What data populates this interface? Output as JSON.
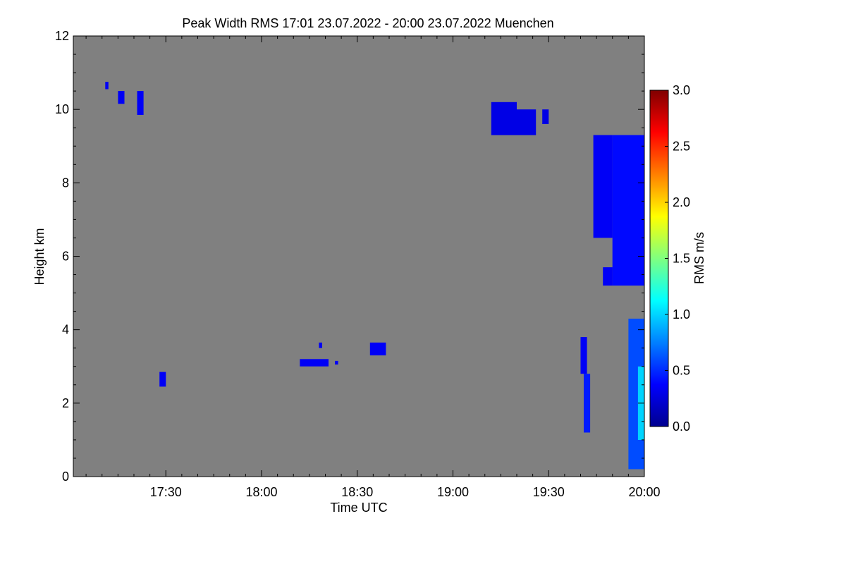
{
  "chart_data": {
    "type": "heatmap",
    "title": "Peak Width RMS   17:01 23.07.2022 - 20:00 23.07.2022 Muenchen",
    "xlabel": "Time UTC",
    "ylabel": "Height km",
    "x_ticks": [
      {
        "value": 1050,
        "label": "17:30"
      },
      {
        "value": 1080,
        "label": "18:00"
      },
      {
        "value": 1110,
        "label": "18:30"
      },
      {
        "value": 1140,
        "label": "19:00"
      },
      {
        "value": 1170,
        "label": "19:30"
      },
      {
        "value": 1200,
        "label": "20:00"
      }
    ],
    "xlim": [
      1021,
      1200
    ],
    "y_ticks": [
      0,
      2,
      4,
      6,
      8,
      10,
      12
    ],
    "ylim": [
      0,
      12
    ],
    "colorbar": {
      "label": "RMS m/s",
      "range": [
        0.0,
        3.0
      ],
      "ticks": [
        "0.0",
        "0.5",
        "1.0",
        "1.5",
        "2.0",
        "2.5",
        "3.0"
      ]
    },
    "background_color": "#808080",
    "echo_regions": [
      {
        "t": [
          1031,
          1032
        ],
        "h": [
          10.55,
          10.75
        ],
        "v": 0.35
      },
      {
        "t": [
          1035,
          1037
        ],
        "h": [
          10.15,
          10.5
        ],
        "v": 0.35
      },
      {
        "t": [
          1041,
          1043
        ],
        "h": [
          9.85,
          10.5
        ],
        "v": 0.35
      },
      {
        "t": [
          1048,
          1050
        ],
        "h": [
          2.45,
          2.85
        ],
        "v": 0.35
      },
      {
        "t": [
          1092,
          1101
        ],
        "h": [
          3.0,
          3.2
        ],
        "v": 0.35
      },
      {
        "t": [
          1103,
          1104
        ],
        "h": [
          3.05,
          3.15
        ],
        "v": 0.35
      },
      {
        "t": [
          1098,
          1099
        ],
        "h": [
          3.5,
          3.65
        ],
        "v": 0.35
      },
      {
        "t": [
          1114,
          1119
        ],
        "h": [
          3.3,
          3.65
        ],
        "v": 0.35
      },
      {
        "t": [
          1152,
          1160
        ],
        "h": [
          9.3,
          10.2
        ],
        "v": 0.3
      },
      {
        "t": [
          1160,
          1166
        ],
        "h": [
          9.3,
          10.0
        ],
        "v": 0.3
      },
      {
        "t": [
          1168,
          1170
        ],
        "h": [
          9.6,
          10.0
        ],
        "v": 0.3
      },
      {
        "t": [
          1184,
          1190
        ],
        "h": [
          6.5,
          9.3
        ],
        "v": 0.35
      },
      {
        "t": [
          1190,
          1200
        ],
        "h": [
          5.2,
          9.3
        ],
        "v": 0.4
      },
      {
        "t": [
          1187,
          1190
        ],
        "h": [
          5.2,
          5.7
        ],
        "v": 0.35
      },
      {
        "t": [
          1180,
          1182
        ],
        "h": [
          2.8,
          3.8
        ],
        "v": 0.35
      },
      {
        "t": [
          1181,
          1183
        ],
        "h": [
          1.2,
          2.8
        ],
        "v": 0.45
      },
      {
        "t": [
          1195,
          1200
        ],
        "h": [
          0.2,
          4.3
        ],
        "v": 0.6
      },
      {
        "t": [
          1198,
          1200
        ],
        "h": [
          1.0,
          3.0
        ],
        "v": 1.0
      }
    ]
  }
}
